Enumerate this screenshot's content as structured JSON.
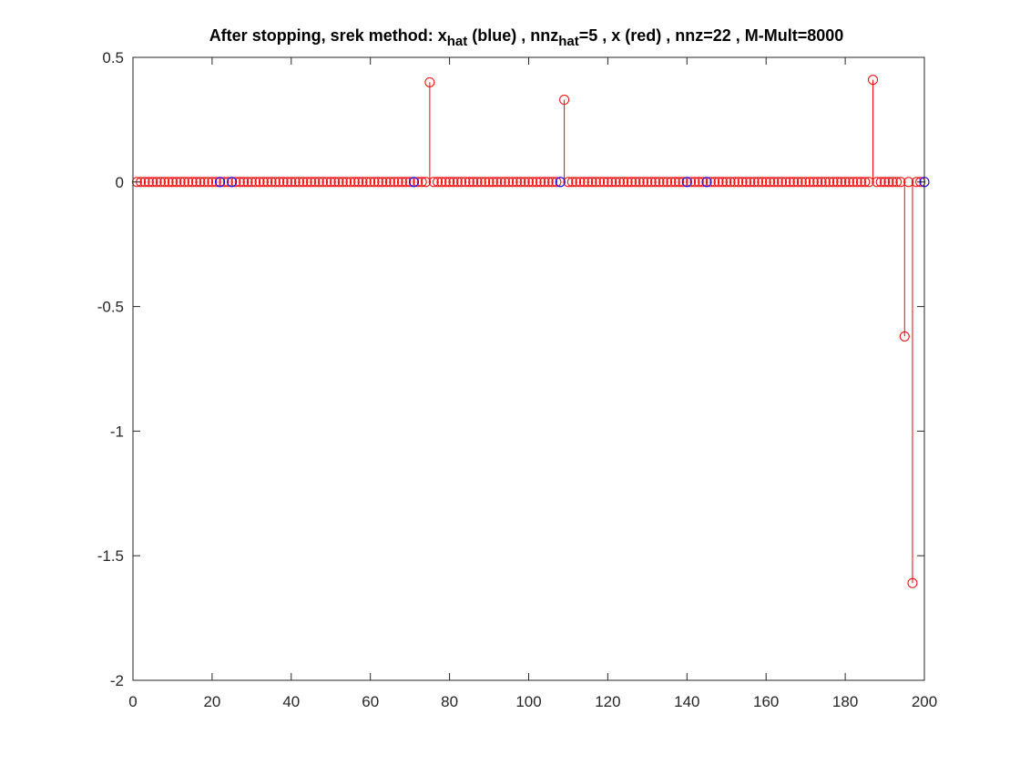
{
  "chart_data": {
    "type": "scatter",
    "title_parts": [
      {
        "text": "After stopping, srek method: x",
        "sub": false
      },
      {
        "text": "hat",
        "sub": true
      },
      {
        "text": " (blue) , nnz",
        "sub": false
      },
      {
        "text": "hat",
        "sub": true
      },
      {
        "text": "=5 , x (red) , nnz=22 , M-Mult=8000",
        "sub": false
      }
    ],
    "xlim": [
      0,
      200
    ],
    "ylim": [
      -2,
      0.5
    ],
    "xticks": [
      0,
      20,
      40,
      60,
      80,
      100,
      120,
      140,
      160,
      180,
      200
    ],
    "xtick_labels": [
      "0",
      "20",
      "40",
      "60",
      "80",
      "100",
      "120",
      "140",
      "160",
      "180",
      "200"
    ],
    "yticks": [
      -2,
      -1.5,
      -1,
      -0.5,
      0,
      0.5
    ],
    "ytick_labels": [
      "-2",
      "-1.5",
      "-1",
      "-0.5",
      "0",
      "0.5"
    ],
    "grid": false,
    "marker": "circle",
    "series": [
      {
        "color": "#ff0000",
        "style": "stem",
        "x_range": [
          1,
          200
        ],
        "nonzero": [
          {
            "x": 75,
            "y": 0.4
          },
          {
            "x": 109,
            "y": 0.33
          },
          {
            "x": 187,
            "y": 0.41
          },
          {
            "x": 195,
            "y": -0.62
          },
          {
            "x": 197,
            "y": -1.61
          }
        ],
        "default_y": 0
      },
      {
        "color": "#0000ff",
        "style": "markers",
        "points": [
          {
            "x": 22,
            "y": 0
          },
          {
            "x": 25,
            "y": 0
          },
          {
            "x": 71,
            "y": 0
          },
          {
            "x": 108,
            "y": 0
          },
          {
            "x": 140,
            "y": 0
          },
          {
            "x": 145,
            "y": 0
          },
          {
            "x": 200,
            "y": 0
          }
        ]
      }
    ]
  }
}
